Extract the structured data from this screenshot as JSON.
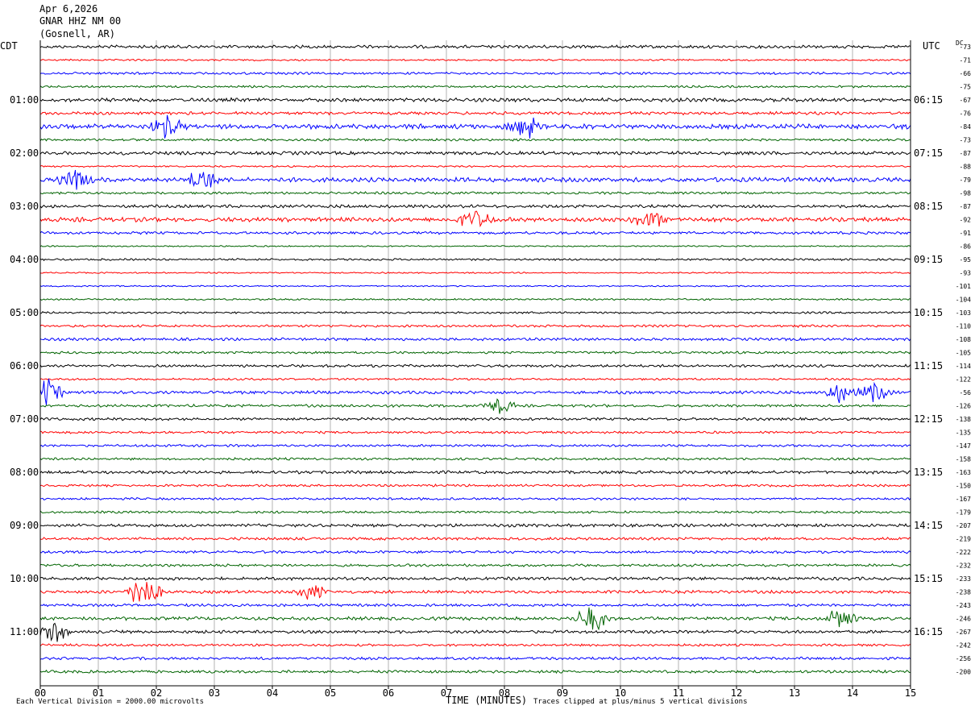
{
  "header": {
    "date": "Apr 6,2026",
    "station": "GNAR HHZ NM 00",
    "location": "(Gosnell, AR)"
  },
  "left_tz": "CDT",
  "right_tz": "UTC",
  "dc_label": "DC",
  "footer": {
    "scale_note": "Each Vertical Division = 2000.00 microvolts",
    "clip_note": "Traces clipped at plus/minus 5 vertical divisions"
  },
  "colors": {
    "cycle": [
      "#000000",
      "#ff0000",
      "#0000ff",
      "#006400"
    ],
    "grid": "#808080"
  },
  "chart_data": {
    "type": "line",
    "title": "GNAR HHZ NM 00",
    "xlabel": "TIME (MINUTES)",
    "ylabel": "",
    "xlim": [
      0,
      15
    ],
    "x_ticks": [
      "00",
      "01",
      "02",
      "03",
      "04",
      "05",
      "06",
      "07",
      "08",
      "09",
      "10",
      "11",
      "12",
      "13",
      "14",
      "15"
    ],
    "rows_per_hour": 4,
    "left_hour_labels": [
      "01:00",
      "02:00",
      "03:00",
      "04:00",
      "05:00",
      "06:00",
      "07:00",
      "08:00",
      "09:00",
      "10:00",
      "11:00"
    ],
    "right_hour_labels": [
      "06:15",
      "07:15",
      "08:15",
      "09:15",
      "10:15",
      "11:15",
      "12:15",
      "13:15",
      "14:15",
      "15:15",
      "16:15"
    ],
    "dc_offsets": [
      "-73",
      "-71",
      "-66",
      "-75",
      "-67",
      "-76",
      "-84",
      "-73",
      "-87",
      "-88",
      "-79",
      "-98",
      "-87",
      "-92",
      "-91",
      "-86",
      "-95",
      "-93",
      "-101",
      "-104",
      "-103",
      "-110",
      "-108",
      "-105",
      "-114",
      "-122",
      "-56",
      "-126",
      "-138",
      "-135",
      "-147",
      "-158",
      "-163",
      "-150",
      "-167",
      "-179",
      "-207",
      "-219",
      "-222",
      "-232",
      "-233",
      "-238",
      "-243",
      "-246",
      "-267",
      "-242",
      "-256",
      "-200"
    ],
    "trace_count": 48,
    "activity": [
      0.9,
      0.5,
      0.7,
      0.6,
      1.1,
      0.9,
      1.4,
      0.7,
      1.0,
      0.5,
      1.3,
      0.7,
      0.9,
      1.3,
      0.8,
      0.4,
      0.6,
      0.4,
      0.4,
      0.5,
      0.6,
      0.7,
      0.8,
      0.7,
      0.8,
      0.6,
      0.9,
      0.8,
      0.8,
      0.7,
      0.7,
      0.7,
      0.9,
      0.7,
      0.7,
      0.7,
      0.9,
      0.8,
      0.8,
      0.8,
      0.9,
      0.9,
      0.8,
      1.0,
      0.9,
      0.7,
      0.8,
      0.8
    ],
    "events": [
      {
        "row": 6,
        "minute": 8.3,
        "amp": 3.0
      },
      {
        "row": 6,
        "minute": 2.2,
        "amp": 2.0
      },
      {
        "row": 10,
        "minute": 0.6,
        "amp": 2.2
      },
      {
        "row": 10,
        "minute": 2.8,
        "amp": 2.4
      },
      {
        "row": 13,
        "minute": 7.5,
        "amp": 2.0
      },
      {
        "row": 13,
        "minute": 10.5,
        "amp": 1.8
      },
      {
        "row": 26,
        "minute": 0.1,
        "amp": 2.6
      },
      {
        "row": 26,
        "minute": 13.8,
        "amp": 1.8
      },
      {
        "row": 26,
        "minute": 14.4,
        "amp": 1.9
      },
      {
        "row": 27,
        "minute": 7.9,
        "amp": 1.8
      },
      {
        "row": 41,
        "minute": 1.8,
        "amp": 3.5
      },
      {
        "row": 41,
        "minute": 4.7,
        "amp": 1.6
      },
      {
        "row": 43,
        "minute": 9.5,
        "amp": 2.6
      },
      {
        "row": 43,
        "minute": 13.8,
        "amp": 1.9
      },
      {
        "row": 44,
        "minute": 0.2,
        "amp": 2.2
      }
    ]
  }
}
